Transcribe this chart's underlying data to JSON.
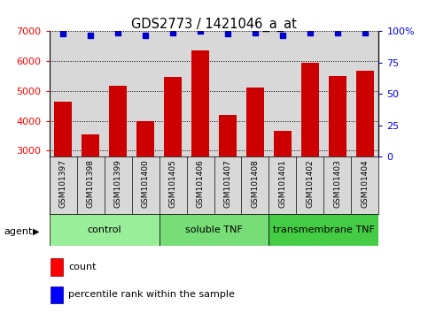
{
  "title": "GDS2773 / 1421046_a_at",
  "samples": [
    "GSM101397",
    "GSM101398",
    "GSM101399",
    "GSM101400",
    "GSM101405",
    "GSM101406",
    "GSM101407",
    "GSM101408",
    "GSM101401",
    "GSM101402",
    "GSM101403",
    "GSM101404"
  ],
  "counts": [
    4650,
    3530,
    5170,
    3980,
    5480,
    6350,
    4200,
    5100,
    3670,
    5940,
    5490,
    5680
  ],
  "percentile_ranks": [
    98,
    97,
    99,
    97,
    99,
    100,
    98,
    99,
    97,
    99,
    99,
    99
  ],
  "ylim": [
    2800,
    7000
  ],
  "yticks_left": [
    3000,
    4000,
    5000,
    6000,
    7000
  ],
  "yticks_right_pct": [
    0,
    25,
    50,
    75,
    100
  ],
  "bar_color": "#cc0000",
  "dot_color": "#0000cc",
  "bar_bg_color": "#d8d8d8",
  "groups": [
    {
      "label": "control",
      "start": 0,
      "end": 4,
      "color": "#99ee99"
    },
    {
      "label": "soluble TNF",
      "start": 4,
      "end": 8,
      "color": "#77dd77"
    },
    {
      "label": "transmembrane TNF",
      "start": 8,
      "end": 12,
      "color": "#44cc44"
    }
  ],
  "agent_label": "agent",
  "legend_count": "count",
  "legend_pct": "percentile rank within the sample"
}
